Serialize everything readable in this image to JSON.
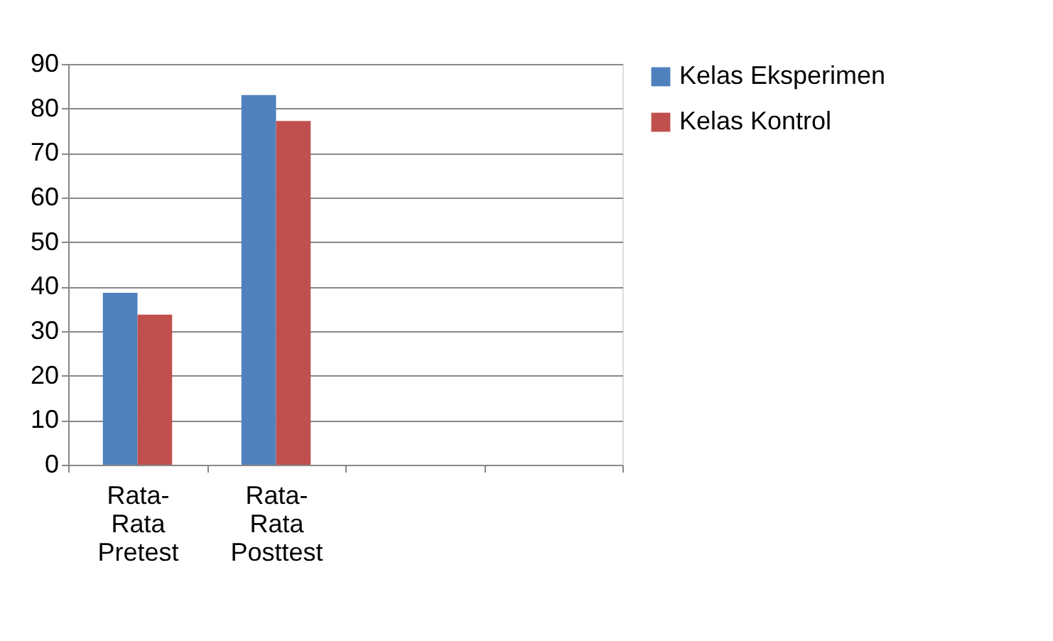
{
  "chart_data": {
    "type": "bar",
    "categories": [
      "Rata-Rata Pretest",
      "Rata-Rata Posttest",
      null,
      null
    ],
    "series": [
      {
        "name": "Kelas Eksperimen",
        "color": "#4f81bd",
        "values": [
          38.6,
          83,
          null,
          null
        ]
      },
      {
        "name": "Kelas Kontrol",
        "color": "#c0504d",
        "values": [
          33.7,
          77.2,
          null,
          null
        ]
      }
    ],
    "ylim": [
      0,
      90
    ],
    "yticks": [
      0,
      10,
      20,
      30,
      40,
      50,
      60,
      70,
      80,
      90
    ],
    "grid": "y",
    "legend": "right"
  }
}
